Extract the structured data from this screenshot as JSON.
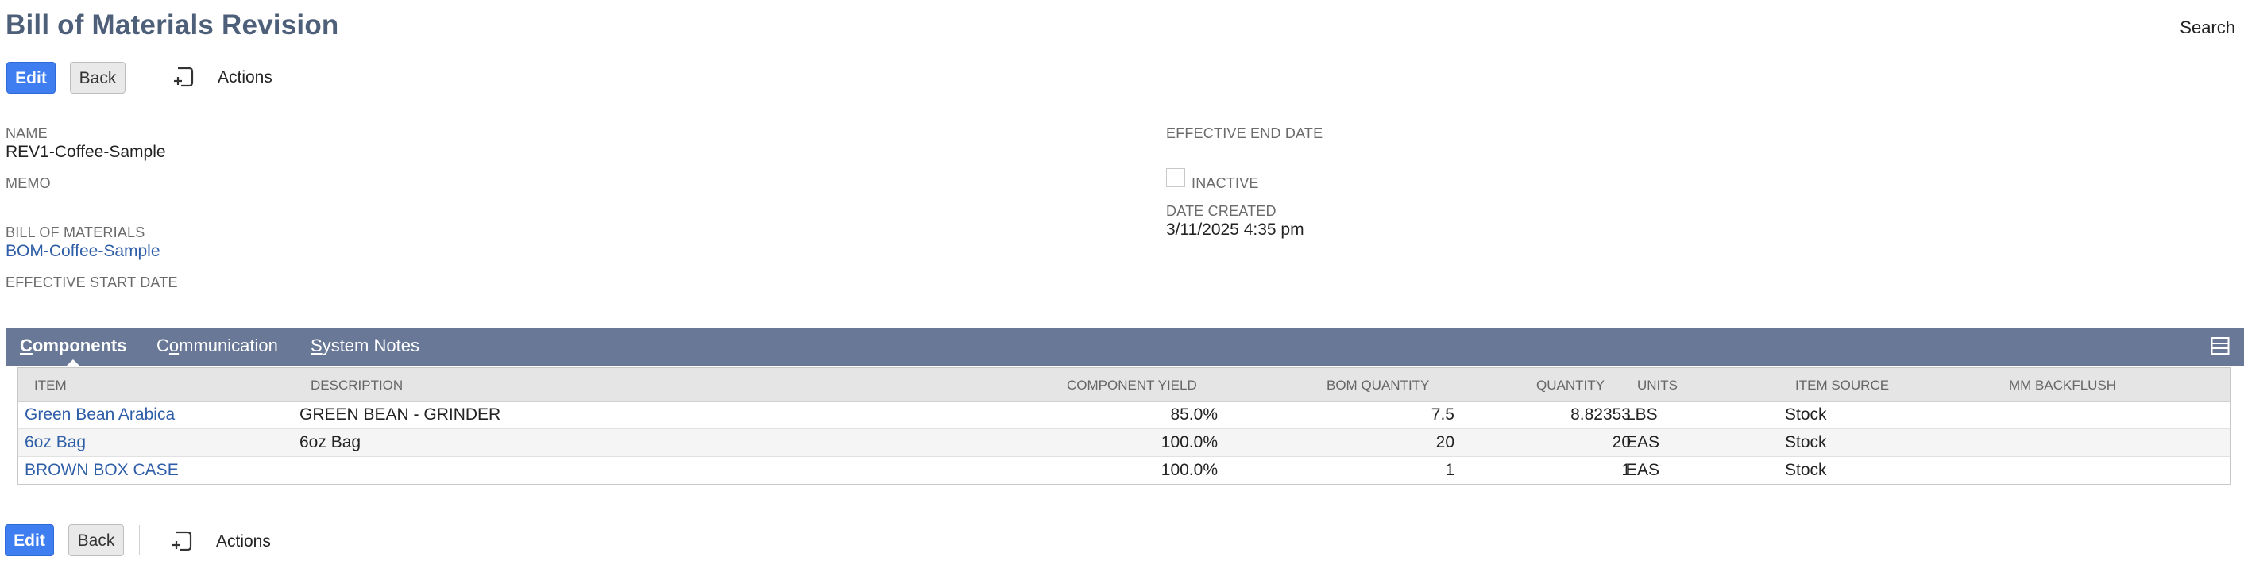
{
  "page": {
    "title": "Bill of Materials Revision",
    "search_label": "Search"
  },
  "toolbar": {
    "edit_label": "Edit",
    "back_label": "Back",
    "actions_label": "Actions"
  },
  "fields": {
    "name_label": "NAME",
    "name_value": "REV1-Coffee-Sample",
    "memo_label": "MEMO",
    "bom_label": "BILL OF MATERIALS",
    "bom_value": "BOM-Coffee-Sample",
    "start_label": "EFFECTIVE START DATE",
    "end_label": "EFFECTIVE END DATE",
    "inactive_label": "INACTIVE",
    "inactive_checked": false,
    "created_label": "DATE CREATED",
    "created_value": "3/11/2025 4:35 pm"
  },
  "tabs": [
    {
      "first": "C",
      "rest": "omponents",
      "active": true
    },
    {
      "first": "C",
      "ul": "o",
      "rest": "mmunication",
      "active": false
    },
    {
      "first": "S",
      "rest": "ystem Notes",
      "active": false
    }
  ],
  "grid": {
    "columns": [
      "ITEM",
      "DESCRIPTION",
      "COMPONENT YIELD",
      "BOM QUANTITY",
      "QUANTITY",
      "UNITS",
      "ITEM SOURCE",
      "MM BACKFLUSH"
    ],
    "rows": [
      {
        "item": "Green Bean Arabica",
        "description": "GREEN BEAN - GRINDER",
        "yield": "85.0%",
        "bom_qty": "7.5",
        "qty": "8.82353",
        "units": "LBS",
        "source": "Stock",
        "backflush": ""
      },
      {
        "item": "6oz Bag",
        "description": "6oz Bag",
        "yield": "100.0%",
        "bom_qty": "20",
        "qty": "20",
        "units": "EAS",
        "source": "Stock",
        "backflush": ""
      },
      {
        "item": "BROWN BOX CASE",
        "description": "",
        "yield": "100.0%",
        "bom_qty": "1",
        "qty": "1",
        "units": "EAS",
        "source": "Stock",
        "backflush": ""
      }
    ]
  },
  "bottom_toolbar": {
    "edit_label": "Edit",
    "back_label": "Back",
    "actions_label": "Actions"
  },
  "colors": {
    "title": "#4d5f79",
    "primary": "#3f7ef0",
    "tabbar": "#687896",
    "link": "#2f5ea8"
  }
}
